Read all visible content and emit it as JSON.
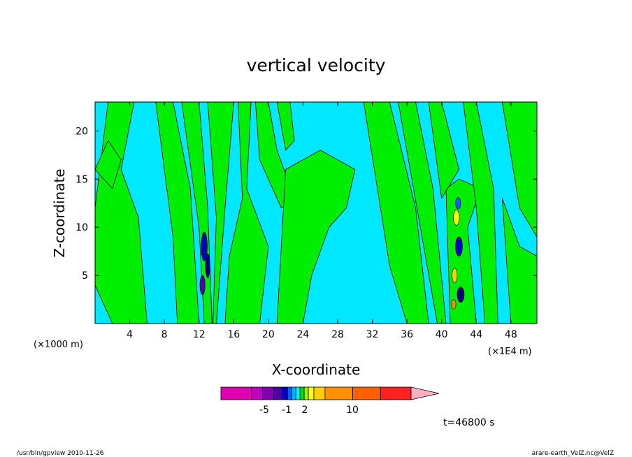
{
  "chart_data": {
    "type": "heatmap",
    "title": "vertical velocity",
    "xlabel": "X-coordinate",
    "ylabel": "Z-coordinate",
    "x_unit_left": "(×1000 m)",
    "x_unit_right": "(×1E4 m)",
    "xlim": [
      0,
      51
    ],
    "ylim": [
      0,
      23
    ],
    "xticks": [
      4,
      8,
      12,
      16,
      20,
      24,
      28,
      32,
      36,
      40,
      44,
      48
    ],
    "yticks": [
      5,
      10,
      15,
      20
    ],
    "time_label": "t=46800 s",
    "colorbar": {
      "colors": [
        "#e000b0",
        "#c000c0",
        "#8000b0",
        "#5000a0",
        "#0000c0",
        "#0060ff",
        "#00b0ff",
        "#00f0ff",
        "#00e000",
        "#a0f000",
        "#ffff00",
        "#ffd000",
        "#ff9000",
        "#ff6000",
        "#ff2020",
        "#ff8080",
        "#ffb0c0"
      ],
      "labels": [
        "-5",
        "-1",
        "2",
        "10"
      ]
    },
    "colors": {
      "background_field": "#00e8ff",
      "updraft_band": "#00ee00",
      "contour": "#000000"
    }
  },
  "footer": {
    "left": "/usr/bin/gpview   2010-11-26",
    "right": "arare-earth_VelZ.nc@VelZ"
  }
}
